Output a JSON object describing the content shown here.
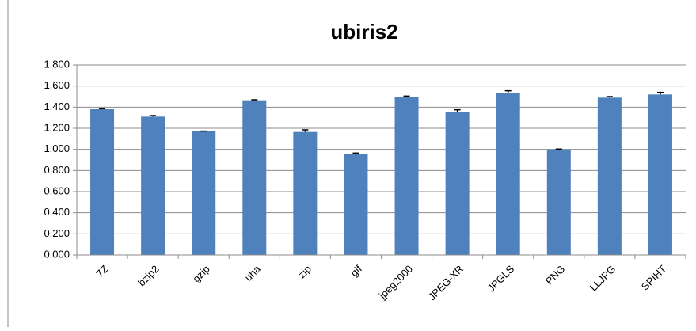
{
  "chart_data": {
    "type": "bar",
    "title": "ubiris2",
    "categories": [
      "7Z",
      "bzip2",
      "gzip",
      "uha",
      "zip",
      "gif",
      "jpeg2000",
      "JPEG-XR",
      "JPGLS",
      "PNG",
      "LLJPG",
      "SPIHT"
    ],
    "values": [
      1.38,
      1.31,
      1.17,
      1.465,
      1.165,
      0.96,
      1.5,
      1.355,
      1.535,
      1.0,
      1.49,
      1.52
    ],
    "errors": [
      0.005,
      0.01,
      0.003,
      0.005,
      0.02,
      0.005,
      0.005,
      0.02,
      0.02,
      0.003,
      0.01,
      0.02
    ],
    "color": "#4f81bd",
    "ylim": [
      0,
      1.8
    ],
    "yticks": [
      {
        "value": 0,
        "label": "0,000"
      },
      {
        "value": 0.2,
        "label": "0,200"
      },
      {
        "value": 0.4,
        "label": "0,400"
      },
      {
        "value": 0.6,
        "label": "0,600"
      },
      {
        "value": 0.8,
        "label": "0,800"
      },
      {
        "value": 1.0,
        "label": "1,000"
      },
      {
        "value": 1.2,
        "label": "1,200"
      },
      {
        "value": 1.4,
        "label": "1,400"
      },
      {
        "value": 1.6,
        "label": "1,600"
      },
      {
        "value": 1.8,
        "label": "1,800"
      }
    ],
    "grid": true
  }
}
